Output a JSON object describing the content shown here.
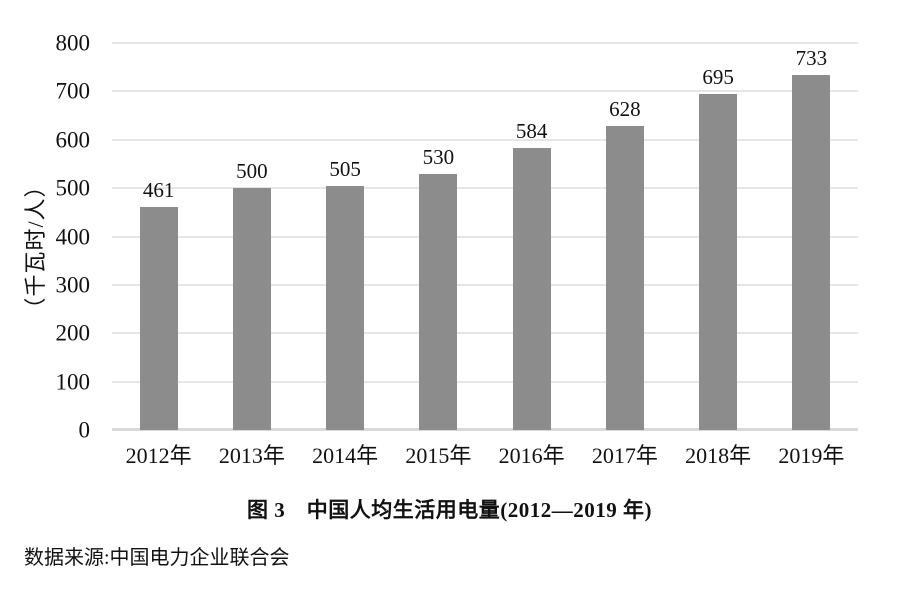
{
  "chart_data": {
    "type": "bar",
    "categories": [
      "2012年",
      "2013年",
      "2014年",
      "2015年",
      "2016年",
      "2017年",
      "2018年",
      "2019年"
    ],
    "values": [
      461,
      500,
      505,
      530,
      584,
      628,
      695,
      733
    ],
    "title": "图 3　中国人均生活用电量(2012—2019 年)",
    "xlabel": "",
    "ylabel": "（千瓦时/人）",
    "ylim": [
      0,
      800
    ],
    "yticks": [
      0,
      100,
      200,
      300,
      400,
      500,
      600,
      700,
      800
    ],
    "grid": true,
    "legend": "none",
    "bar_color": "#8c8c8c",
    "gridline_color": "#e6e6e6",
    "axis_line_color": "#d9d9d9",
    "text_color": "#111111",
    "source": "数据来源:中国电力企业联合会"
  }
}
